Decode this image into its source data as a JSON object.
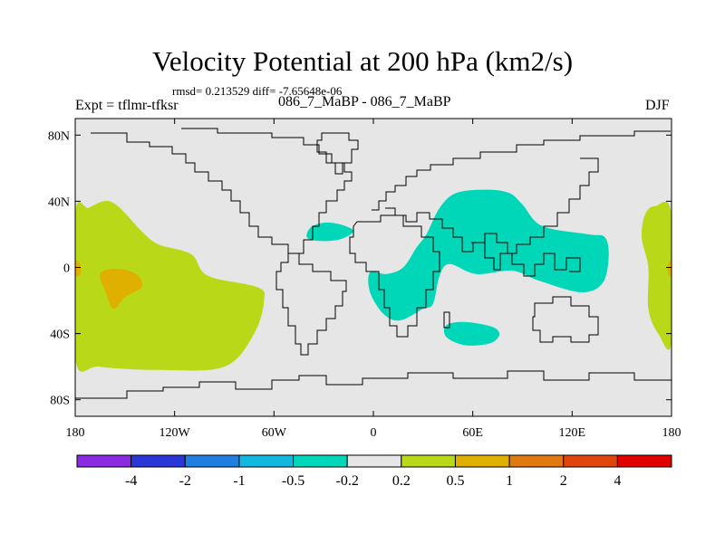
{
  "chart_data": {
    "type": "filled-contour-map",
    "title": "Velocity Potential at 200 hPa (km2/s)",
    "stats_line": "rmsd= 0.213529 diff= -7.65648e-06",
    "left_label": "Expt = tflmr-tfksr",
    "center_label": "086_7_MaBP - 086_7_MaBP",
    "right_label": "DJF",
    "x_ticks": [
      {
        "lon": -180,
        "label": "180"
      },
      {
        "lon": -120,
        "label": "120W"
      },
      {
        "lon": -60,
        "label": "60W"
      },
      {
        "lon": 0,
        "label": "0"
      },
      {
        "lon": 60,
        "label": "60E"
      },
      {
        "lon": 120,
        "label": "120E"
      },
      {
        "lon": 180,
        "label": "180"
      }
    ],
    "y_ticks": [
      {
        "lat": 80,
        "label": "80N"
      },
      {
        "lat": 40,
        "label": "40N"
      },
      {
        "lat": 0,
        "label": "0"
      },
      {
        "lat": -40,
        "label": "40S"
      },
      {
        "lat": -80,
        "label": "80S"
      }
    ],
    "xlim": [
      -180,
      180
    ],
    "ylim": [
      -90,
      90
    ],
    "colorbar": {
      "colors": [
        "#8a2be2",
        "#2a36d6",
        "#1f7fe0",
        "#12b8e0",
        "#00d7b8",
        "#e6e6e6",
        "#b8d818",
        "#e0b000",
        "#e07a10",
        "#e0460a",
        "#e00000"
      ],
      "labels": [
        "-4",
        "-2",
        "-1",
        "-0.5",
        "-0.2",
        "0.2",
        "0.5",
        "1",
        "2",
        "4"
      ]
    },
    "regions": [
      {
        "name": "positive anomaly Pacific east",
        "level": "0.2 to 0.5",
        "color": "#b8d818",
        "points": [
          [
            -180,
            32
          ],
          [
            -172,
            36
          ],
          [
            -163,
            40
          ],
          [
            -157,
            39
          ],
          [
            -150,
            33
          ],
          [
            -140,
            22
          ],
          [
            -130,
            14
          ],
          [
            -110,
            8
          ],
          [
            -100,
            -5
          ],
          [
            -70,
            -12
          ],
          [
            -66,
            -20
          ],
          [
            -72,
            -40
          ],
          [
            -90,
            -60
          ],
          [
            -130,
            -62
          ],
          [
            -165,
            -60
          ],
          [
            -180,
            -55
          ]
        ]
      },
      {
        "name": "positive anomaly Pacific west",
        "level": "0.2 to 0.5",
        "color": "#b8d818",
        "points": [
          [
            180,
            32
          ],
          [
            170,
            37
          ],
          [
            164,
            32
          ],
          [
            162,
            18
          ],
          [
            166,
            0
          ],
          [
            166,
            -25
          ],
          [
            172,
            -40
          ],
          [
            180,
            -45
          ]
        ]
      },
      {
        "name": "stronger positive core central Pacific",
        "level": "0.5 to 1",
        "color": "#e0b000",
        "points": [
          [
            -163,
            -2
          ],
          [
            -152,
            -1
          ],
          [
            -142,
            -5
          ],
          [
            -140,
            -12
          ],
          [
            -150,
            -18
          ],
          [
            -157,
            -25
          ],
          [
            -162,
            -14
          ],
          [
            -165,
            -6
          ]
        ]
      },
      {
        "name": "stronger positive dateline east",
        "level": "0.5 to 1",
        "color": "#e0b000",
        "points": [
          [
            -180,
            4
          ],
          [
            -177,
            2
          ],
          [
            -177,
            -4
          ],
          [
            -180,
            -5
          ]
        ]
      },
      {
        "name": "stronger positive dateline west",
        "level": "0.5 to 1",
        "color": "#e0b000",
        "points": [
          [
            180,
            4
          ],
          [
            178,
            2
          ],
          [
            178,
            -4
          ],
          [
            180,
            -5
          ]
        ]
      },
      {
        "name": "negative anomaly Eurasia-Indian Ocean",
        "level": "-0.5 to -0.2",
        "color": "#00d7b8",
        "points": [
          [
            -2,
            -3
          ],
          [
            8,
            -4
          ],
          [
            18,
            0
          ],
          [
            26,
            12
          ],
          [
            32,
            20
          ],
          [
            40,
            36
          ],
          [
            50,
            45
          ],
          [
            68,
            47
          ],
          [
            82,
            45
          ],
          [
            90,
            38
          ],
          [
            102,
            25
          ],
          [
            130,
            20
          ],
          [
            140,
            18
          ],
          [
            142,
            5
          ],
          [
            138,
            -10
          ],
          [
            125,
            -15
          ],
          [
            100,
            -8
          ],
          [
            84,
            -2
          ],
          [
            62,
            -4
          ],
          [
            46,
            2
          ],
          [
            40,
            -5
          ],
          [
            36,
            -22
          ],
          [
            30,
            -25
          ],
          [
            16,
            -32
          ],
          [
            6,
            -28
          ],
          [
            -2,
            -15
          ]
        ]
      },
      {
        "name": "negative anomaly North Africa",
        "level": "-0.5 to -0.2",
        "color": "#00d7b8",
        "points": [
          [
            -38,
            24
          ],
          [
            -30,
            27
          ],
          [
            -20,
            26
          ],
          [
            -12,
            22
          ],
          [
            -20,
            17
          ],
          [
            -32,
            16
          ],
          [
            -40,
            18
          ]
        ]
      },
      {
        "name": "negative anomaly southern Indian Ocean",
        "level": "-0.5 to -0.2",
        "color": "#00d7b8",
        "points": [
          [
            44,
            -35
          ],
          [
            55,
            -33
          ],
          [
            72,
            -36
          ],
          [
            76,
            -41
          ],
          [
            70,
            -46
          ],
          [
            55,
            -47
          ],
          [
            44,
            -42
          ]
        ]
      }
    ]
  }
}
